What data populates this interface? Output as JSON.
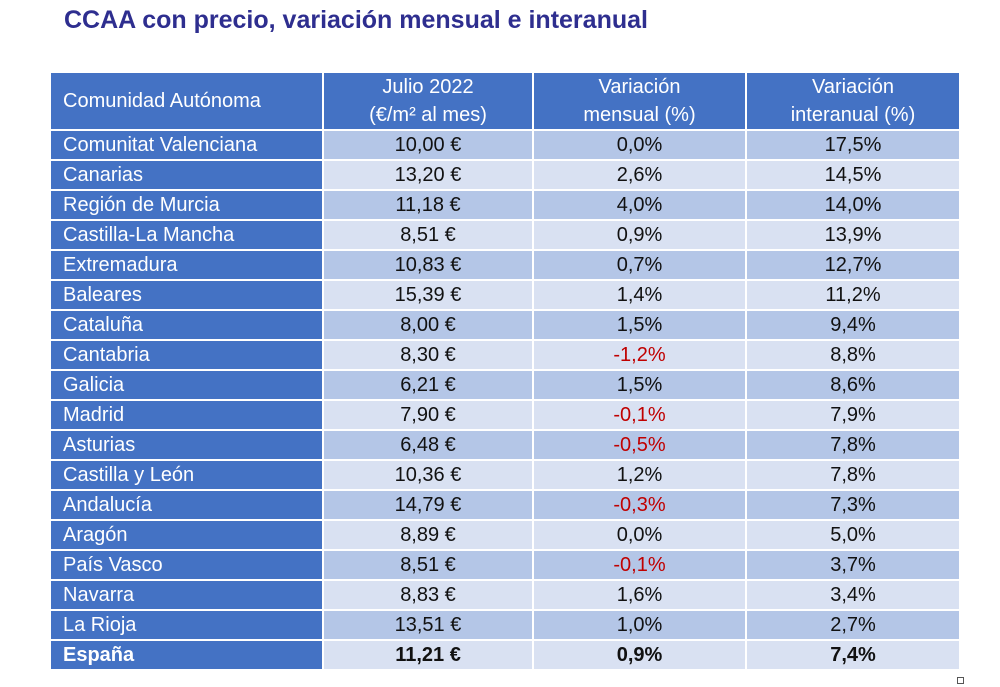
{
  "title": "CCAA con precio, variación mensual e interanual",
  "table": {
    "headers": [
      [
        "Comunidad Autónoma"
      ],
      [
        "Julio 2022",
        "(€/m² al mes)"
      ],
      [
        "Variación",
        "mensual (%)"
      ],
      [
        "Variación",
        "interanual (%)"
      ]
    ],
    "rows": [
      {
        "region": "Comunitat Valenciana",
        "precio": "10,00 €",
        "mensual": "0,0%",
        "interanual": "17,5%",
        "mensual_negative": false
      },
      {
        "region": "Canarias",
        "precio": "13,20 €",
        "mensual": "2,6%",
        "interanual": "14,5%",
        "mensual_negative": false
      },
      {
        "region": "Región de Murcia",
        "precio": "11,18 €",
        "mensual": "4,0%",
        "interanual": "14,0%",
        "mensual_negative": false
      },
      {
        "region": "Castilla-La Mancha",
        "precio": "8,51 €",
        "mensual": "0,9%",
        "interanual": "13,9%",
        "mensual_negative": false
      },
      {
        "region": "Extremadura",
        "precio": "10,83 €",
        "mensual": "0,7%",
        "interanual": "12,7%",
        "mensual_negative": false
      },
      {
        "region": "Baleares",
        "precio": "15,39 €",
        "mensual": "1,4%",
        "interanual": "11,2%",
        "mensual_negative": false
      },
      {
        "region": "Cataluña",
        "precio": "8,00 €",
        "mensual": "1,5%",
        "interanual": "9,4%",
        "mensual_negative": false
      },
      {
        "region": "Cantabria",
        "precio": "8,30 €",
        "mensual": "-1,2%",
        "interanual": "8,8%",
        "mensual_negative": true
      },
      {
        "region": "Galicia",
        "precio": "6,21 €",
        "mensual": "1,5%",
        "interanual": "8,6%",
        "mensual_negative": false
      },
      {
        "region": "Madrid",
        "precio": "7,90 €",
        "mensual": "-0,1%",
        "interanual": "7,9%",
        "mensual_negative": true
      },
      {
        "region": "Asturias",
        "precio": "6,48 €",
        "mensual": "-0,5%",
        "interanual": "7,8%",
        "mensual_negative": true
      },
      {
        "region": "Castilla y León",
        "precio": "10,36 €",
        "mensual": "1,2%",
        "interanual": "7,8%",
        "mensual_negative": false
      },
      {
        "region": "Andalucía",
        "precio": "14,79 €",
        "mensual": "-0,3%",
        "interanual": "7,3%",
        "mensual_negative": true
      },
      {
        "region": "Aragón",
        "precio": "8,89 €",
        "mensual": "0,0%",
        "interanual": "5,0%",
        "mensual_negative": false
      },
      {
        "region": "País Vasco",
        "precio": "8,51 €",
        "mensual": "-0,1%",
        "interanual": "3,7%",
        "mensual_negative": true
      },
      {
        "region": "Navarra",
        "precio": "8,83 €",
        "mensual": "1,6%",
        "interanual": "3,4%",
        "mensual_negative": false
      },
      {
        "region": "La Rioja",
        "precio": "13,51 €",
        "mensual": "1,0%",
        "interanual": "2,7%",
        "mensual_negative": false
      }
    ],
    "total": {
      "region": "España",
      "precio": "11,21 €",
      "mensual": "0,9%",
      "interanual": "7,4%"
    }
  },
  "colors": {
    "title": "#2e2e8f",
    "header_bg": "#4472c4",
    "band_dark": "#b4c6e7",
    "band_light": "#d9e1f2",
    "negative": "#c00000"
  }
}
